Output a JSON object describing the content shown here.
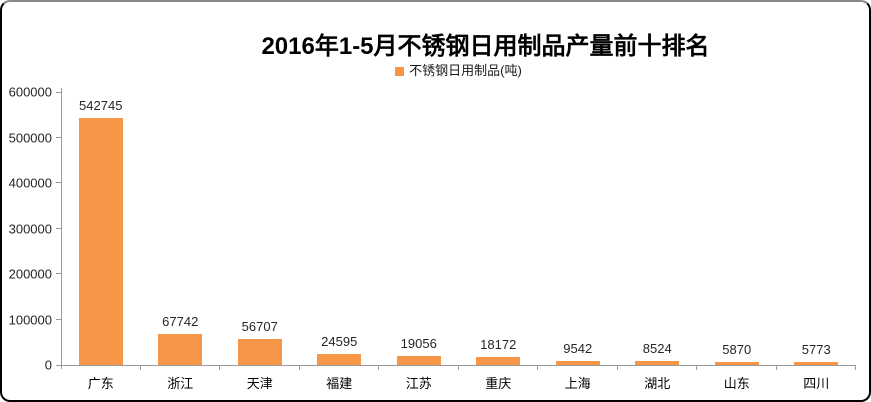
{
  "chart_data": {
    "type": "bar",
    "title": "2016年1-5月不锈钢日用制品产量前十排名",
    "legend": [
      {
        "label": "不锈钢日用制品(吨)",
        "color": "#F79646"
      }
    ],
    "legend_position": "top",
    "categories": [
      "广东",
      "浙江",
      "天津",
      "福建",
      "江苏",
      "重庆",
      "上海",
      "湖北",
      "山东",
      "四川"
    ],
    "values": [
      542745,
      67742,
      56707,
      24595,
      19056,
      18172,
      9542,
      8524,
      5870,
      5773
    ],
    "series_name": "不锈钢日用制品(吨)",
    "data_labels": true,
    "xlabel": "",
    "ylabel": "",
    "ylim": [
      0,
      600000
    ],
    "yticks": [
      0,
      100000,
      200000,
      300000,
      400000,
      500000,
      600000
    ],
    "grid": false,
    "bar_color": "#F79646",
    "axis_color": "#9A9A9A",
    "text_color": "#262626",
    "title_color": "#000000",
    "background_color": "#FFFFFF",
    "frame_border_color": "#000000",
    "frame_top_border_color": "#888888"
  }
}
